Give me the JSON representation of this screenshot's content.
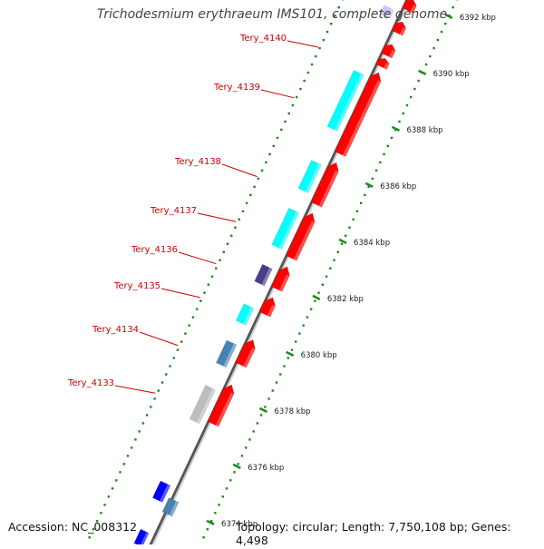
{
  "title": "Trichodesmium erythraeum IMS101, complete genome",
  "footer": {
    "accession": "Accession: NC_008312",
    "summary": "Topology: circular; Length: 7,750,108 bp; Genes: 4,498"
  },
  "colors": {
    "forward_cds": "#ff0000",
    "cyan_cds": "#00ffff",
    "steelblue_cds": "#4682b4",
    "purple_cds": "#483d8b",
    "grey_cds": "#bdbdbd",
    "blue_cds": "#0000ff",
    "label": "#cc0000",
    "tick": "#1a8a1a"
  },
  "tick_labels": [
    "6392 kbp",
    "6390 kbp",
    "6388 kbp",
    "6386 kbp",
    "6384 kbp",
    "6382 kbp",
    "6380 kbp",
    "6378 kbp",
    "6376 kbp",
    "6374 kbp"
  ],
  "gene_labels": [
    "Tery_4140",
    "Tery_4139",
    "Tery_4138",
    "Tery_4137",
    "Tery_4136",
    "Tery_4135",
    "Tery_4134",
    "Tery_4133"
  ]
}
